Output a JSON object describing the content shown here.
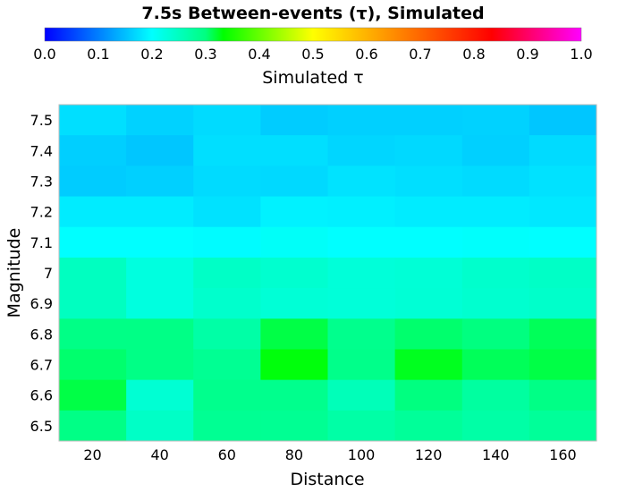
{
  "chart_data": {
    "type": "heatmap",
    "title": "7.5s Between-events (τ), Simulated",
    "xlabel": "Distance",
    "ylabel": "Magnitude",
    "colorbar": {
      "label": "Simulated τ",
      "range": [
        0.0,
        1.0
      ],
      "ticks": [
        "0.0",
        "0.1",
        "0.2",
        "0.3",
        "0.4",
        "0.5",
        "0.6",
        "0.7",
        "0.8",
        "0.9",
        "1.0"
      ],
      "colormap": "hsv-like (blue → cyan → green → yellow → red → magenta)",
      "position": "top"
    },
    "x": [
      20,
      40,
      60,
      80,
      100,
      120,
      140,
      160
    ],
    "y": [
      7.5,
      7.4,
      7.3,
      7.2,
      7.1,
      7.0,
      6.9,
      6.8,
      6.7,
      6.6,
      6.5
    ],
    "y_tick_labels": [
      "7.5",
      "7.4",
      "7.3",
      "7.2",
      "7.1",
      "7",
      "6.9",
      "6.8",
      "6.7",
      "6.6",
      "6.5"
    ],
    "z": [
      [
        0.175,
        0.165,
        0.172,
        0.16,
        0.163,
        0.163,
        0.165,
        0.155
      ],
      [
        0.162,
        0.155,
        0.175,
        0.175,
        0.168,
        0.17,
        0.163,
        0.172
      ],
      [
        0.16,
        0.163,
        0.172,
        0.17,
        0.178,
        0.175,
        0.172,
        0.177
      ],
      [
        0.185,
        0.185,
        0.177,
        0.19,
        0.188,
        0.185,
        0.185,
        0.182
      ],
      [
        0.2,
        0.2,
        0.198,
        0.205,
        0.2,
        0.2,
        0.202,
        0.2
      ],
      [
        0.25,
        0.225,
        0.245,
        0.238,
        0.23,
        0.232,
        0.24,
        0.245
      ],
      [
        0.25,
        0.225,
        0.24,
        0.232,
        0.23,
        0.233,
        0.238,
        0.242
      ],
      [
        0.295,
        0.295,
        0.27,
        0.315,
        0.29,
        0.305,
        0.3,
        0.31
      ],
      [
        0.305,
        0.295,
        0.285,
        0.33,
        0.292,
        0.325,
        0.31,
        0.315
      ],
      [
        0.315,
        0.235,
        0.29,
        0.29,
        0.255,
        0.3,
        0.275,
        0.295
      ],
      [
        0.295,
        0.245,
        0.285,
        0.285,
        0.27,
        0.28,
        0.27,
        0.28
      ]
    ],
    "grid": false
  }
}
